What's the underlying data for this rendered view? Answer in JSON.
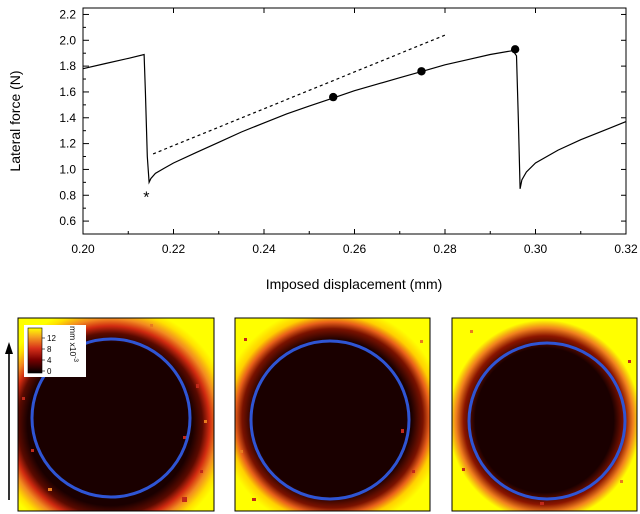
{
  "chart_data": {
    "type": "line",
    "xlabel": "Imposed displacement (mm)",
    "ylabel": "Lateral force (N)",
    "xlim": [
      0.2,
      0.32
    ],
    "ylim": [
      0.5,
      2.25
    ],
    "x_ticks": [
      "0.20",
      "0.22",
      "0.24",
      "0.26",
      "0.28",
      "0.30",
      "0.32"
    ],
    "y_ticks": [
      "0.6",
      "0.8",
      "1.0",
      "1.2",
      "1.4",
      "1.6",
      "1.8",
      "2.0",
      "2.2"
    ],
    "series": [
      {
        "style": "solid",
        "x": [
          0.2,
          0.205,
          0.21,
          0.2135,
          0.2138,
          0.2142,
          0.2146,
          0.215,
          0.216,
          0.218,
          0.22,
          0.225,
          0.23,
          0.235,
          0.24,
          0.245,
          0.25,
          0.255,
          0.26,
          0.265,
          0.27,
          0.275,
          0.28,
          0.285,
          0.29,
          0.295,
          0.2958,
          0.2962,
          0.2966,
          0.297,
          0.298,
          0.3,
          0.305,
          0.31,
          0.315,
          0.32
        ],
        "y": [
          1.78,
          1.82,
          1.86,
          1.89,
          1.6,
          1.1,
          0.9,
          0.93,
          0.97,
          1.01,
          1.05,
          1.13,
          1.21,
          1.29,
          1.36,
          1.43,
          1.49,
          1.55,
          1.61,
          1.66,
          1.71,
          1.76,
          1.81,
          1.85,
          1.89,
          1.92,
          1.88,
          1.4,
          0.85,
          0.92,
          0.98,
          1.05,
          1.15,
          1.23,
          1.3,
          1.37
        ]
      },
      {
        "style": "dashed",
        "x": [
          0.2155,
          0.28
        ],
        "y": [
          1.12,
          2.04
        ]
      }
    ],
    "markers": {
      "dots": [
        {
          "x": 0.2553,
          "y": 1.56
        },
        {
          "x": 0.2748,
          "y": 1.76
        },
        {
          "x": 0.2955,
          "y": 1.93
        }
      ],
      "asterisk": {
        "x": 0.214,
        "y": 0.79,
        "label": "*"
      }
    }
  },
  "colorbar": {
    "unit": "mm x10",
    "unit_exp": "-3",
    "ticks": [
      "12",
      "8",
      "4",
      "0"
    ]
  },
  "colors": {
    "circle": "#2f55d4",
    "bg_yellow": "#ffff00",
    "contact_dark": "#220000",
    "orange": "#e87b1f",
    "red": "#c0281a"
  }
}
